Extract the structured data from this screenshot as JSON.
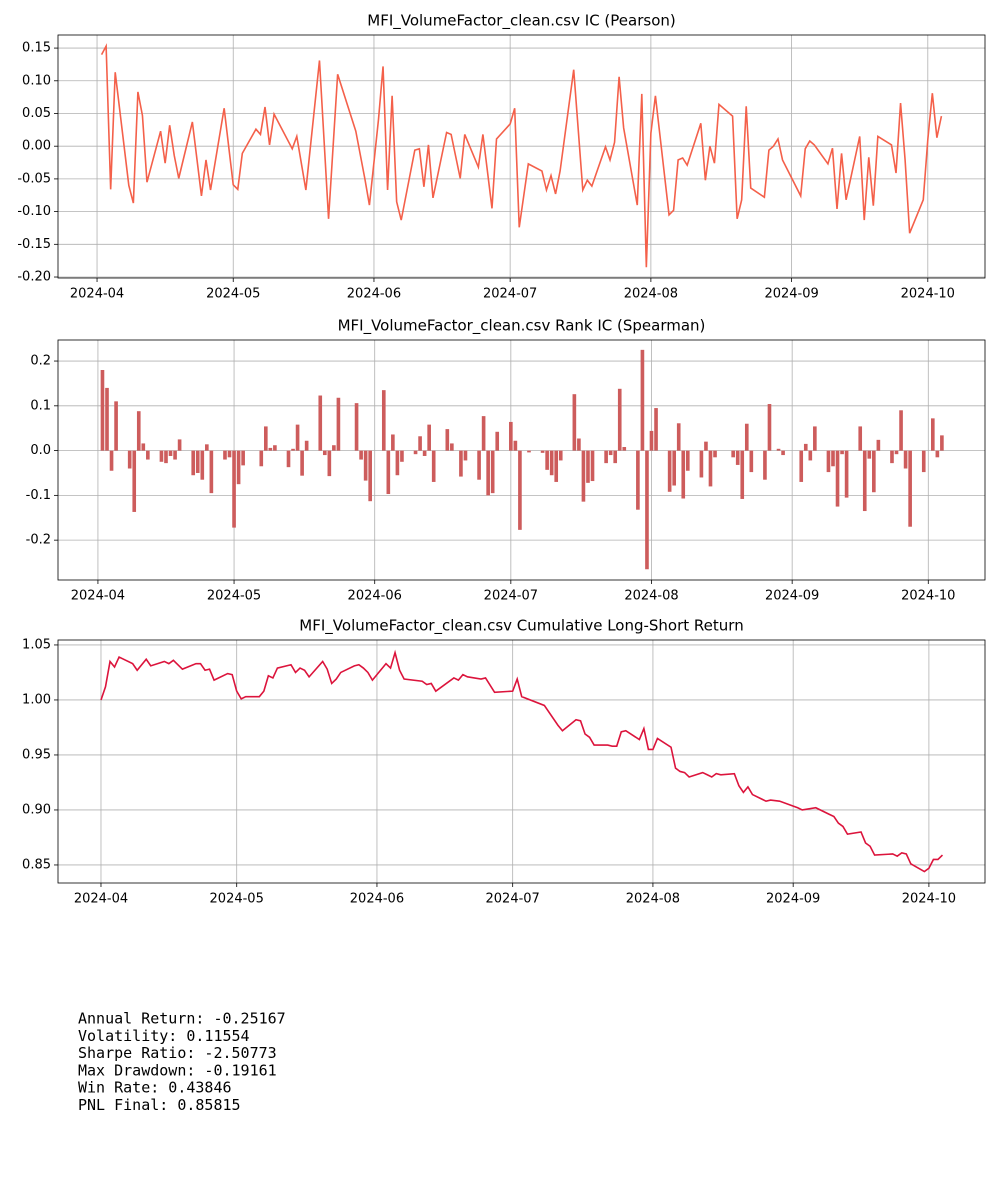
{
  "chart_data": [
    {
      "type": "line",
      "title": "MFI_VolumeFactor_clean.csv IC (Pearson)",
      "color": "#f4604a",
      "grid": true,
      "x": [
        1,
        2,
        3,
        4,
        7,
        8,
        9,
        10,
        11,
        14,
        15,
        16,
        17,
        18,
        21,
        23,
        24,
        25,
        28,
        30,
        31,
        32,
        35,
        36,
        37,
        38,
        39,
        43,
        44,
        46,
        49,
        51,
        53,
        57,
        59,
        60,
        62,
        63,
        64,
        65,
        66,
        67,
        70,
        71,
        72,
        73,
        74,
        77,
        78,
        80,
        81,
        84,
        85,
        87,
        88,
        91,
        92,
        93,
        95,
        98,
        99,
        100,
        101,
        102,
        105,
        107,
        108,
        109,
        112,
        113,
        114,
        115,
        116,
        119,
        120,
        121,
        122,
        123,
        126,
        127,
        128,
        129,
        130,
        133,
        134,
        135,
        136,
        137,
        140,
        141,
        142,
        143,
        144,
        147,
        148,
        149,
        150,
        151,
        155,
        156,
        157,
        158,
        161,
        162,
        163,
        164,
        165,
        168,
        169,
        170,
        171,
        172,
        175,
        176,
        177,
        178,
        179,
        182,
        183,
        184,
        185,
        186
      ],
      "values": [
        0.14,
        0.153,
        -0.066,
        0.113,
        -0.06,
        -0.087,
        0.083,
        0.047,
        -0.055,
        0.023,
        -0.026,
        0.032,
        -0.014,
        -0.049,
        0.037,
        -0.076,
        -0.021,
        -0.067,
        0.058,
        -0.059,
        -0.066,
        -0.011,
        0.026,
        0.018,
        0.06,
        0.002,
        0.049,
        -0.004,
        0.015,
        -0.067,
        0.131,
        -0.111,
        0.11,
        0.023,
        -0.05,
        -0.09,
        0.041,
        0.122,
        -0.067,
        0.077,
        -0.085,
        -0.113,
        -0.006,
        -0.004,
        -0.062,
        0.002,
        -0.079,
        0.021,
        0.018,
        -0.049,
        0.018,
        -0.032,
        0.018,
        -0.095,
        0.011,
        0.034,
        0.058,
        -0.124,
        -0.027,
        -0.038,
        -0.067,
        -0.045,
        -0.073,
        -0.038,
        0.117,
        -0.067,
        -0.052,
        -0.061,
        -0.001,
        -0.021,
        0.006,
        0.106,
        0.028,
        -0.09,
        0.08,
        -0.185,
        0.02,
        0.077,
        -0.105,
        -0.098,
        -0.021,
        -0.018,
        -0.029,
        0.035,
        -0.052,
        0.0,
        -0.026,
        0.064,
        0.046,
        -0.111,
        -0.082,
        0.061,
        -0.064,
        -0.078,
        -0.006,
        0.0,
        0.011,
        -0.021,
        -0.076,
        -0.004,
        0.008,
        0.002,
        -0.027,
        -0.003,
        -0.096,
        -0.011,
        -0.082,
        0.015,
        -0.113,
        -0.017,
        -0.091,
        0.015,
        0.002,
        -0.041,
        0.066,
        -0.021,
        -0.133,
        -0.082,
        0.01,
        0.081,
        0.013,
        0.046
      ],
      "xlim": [
        -8.6,
        195.6
      ],
      "ylim": [
        -0.2015,
        0.17
      ],
      "xticks": [
        {
          "value": 0,
          "label": "2024-04"
        },
        {
          "value": 30,
          "label": "2024-05"
        },
        {
          "value": 61,
          "label": "2024-06"
        },
        {
          "value": 91,
          "label": "2024-07"
        },
        {
          "value": 122,
          "label": "2024-08"
        },
        {
          "value": 153,
          "label": "2024-09"
        },
        {
          "value": 183,
          "label": "2024-10"
        }
      ],
      "yticks": [
        0.15,
        {
          "value": 0.1,
          "label": "0.10"
        },
        0.05,
        {
          "value": 0,
          "label": "0.00"
        },
        -0.05,
        {
          "value": -0.1,
          "label": "-0.10"
        },
        -0.15,
        {
          "value": -0.2,
          "label": "-0.20"
        }
      ]
    },
    {
      "type": "bar",
      "title": "MFI_VolumeFactor_clean.csv Rank IC (Spearman)",
      "color": "#cd5c5c",
      "grid": true,
      "x": [
        1,
        2,
        3,
        4,
        7,
        8,
        9,
        10,
        11,
        14,
        15,
        16,
        17,
        18,
        21,
        22,
        23,
        24,
        25,
        28,
        29,
        30,
        31,
        32,
        36,
        37,
        38,
        39,
        42,
        43,
        44,
        45,
        46,
        49,
        50,
        51,
        52,
        53,
        57,
        58,
        59,
        60,
        63,
        64,
        65,
        66,
        67,
        70,
        71,
        72,
        73,
        74,
        77,
        78,
        80,
        81,
        84,
        85,
        86,
        87,
        88,
        91,
        92,
        93,
        95,
        98,
        99,
        100,
        101,
        102,
        105,
        106,
        107,
        108,
        109,
        112,
        113,
        114,
        115,
        116,
        119,
        120,
        121,
        122,
        123,
        126,
        127,
        128,
        129,
        130,
        133,
        134,
        135,
        136,
        140,
        141,
        142,
        143,
        144,
        147,
        148,
        150,
        151,
        155,
        156,
        157,
        158,
        161,
        162,
        163,
        164,
        165,
        168,
        169,
        170,
        171,
        172,
        175,
        176,
        177,
        178,
        179,
        182,
        184,
        185,
        186
      ],
      "values": [
        0.18,
        0.14,
        -0.045,
        0.11,
        -0.04,
        -0.137,
        0.088,
        0.016,
        -0.02,
        -0.025,
        -0.028,
        -0.012,
        -0.02,
        0.025,
        -0.055,
        -0.05,
        -0.065,
        0.014,
        -0.095,
        -0.02,
        -0.015,
        -0.172,
        -0.075,
        -0.033,
        -0.035,
        0.054,
        0.006,
        0.012,
        -0.037,
        0.004,
        0.058,
        -0.056,
        0.022,
        0.123,
        -0.01,
        -0.057,
        0.012,
        0.118,
        0.106,
        -0.02,
        -0.067,
        -0.113,
        0.135,
        -0.097,
        0.036,
        -0.055,
        -0.025,
        -0.008,
        0.032,
        -0.012,
        0.058,
        -0.07,
        0.048,
        0.016,
        -0.058,
        -0.022,
        -0.065,
        0.077,
        -0.1,
        -0.095,
        0.042,
        0.064,
        0.022,
        -0.177,
        -0.004,
        -0.005,
        -0.043,
        -0.055,
        -0.07,
        -0.022,
        0.126,
        0.027,
        -0.114,
        -0.072,
        -0.068,
        -0.028,
        -0.01,
        -0.028,
        0.138,
        0.008,
        -0.132,
        0.225,
        -0.265,
        0.044,
        0.095,
        -0.092,
        -0.078,
        0.061,
        -0.107,
        -0.045,
        -0.06,
        0.02,
        -0.08,
        -0.015,
        -0.015,
        -0.032,
        -0.108,
        0.06,
        -0.048,
        -0.065,
        0.104,
        0.004,
        -0.01,
        -0.07,
        0.015,
        -0.022,
        0.054,
        -0.048,
        -0.035,
        -0.125,
        -0.008,
        -0.105,
        0.054,
        -0.135,
        -0.018,
        -0.093,
        0.024,
        -0.028,
        -0.008,
        0.09,
        -0.04,
        -0.17,
        -0.048,
        0.072,
        -0.015,
        0.034
      ],
      "xlim": [
        -8.8,
        195.5
      ],
      "ylim": [
        -0.289,
        0.247
      ],
      "xticks": [
        {
          "value": 0,
          "label": "2024-04"
        },
        {
          "value": 30,
          "label": "2024-05"
        },
        {
          "value": 61,
          "label": "2024-06"
        },
        {
          "value": 91,
          "label": "2024-07"
        },
        {
          "value": 122,
          "label": "2024-08"
        },
        {
          "value": 153,
          "label": "2024-09"
        },
        {
          "value": 183,
          "label": "2024-10"
        }
      ],
      "yticks": [
        0.2,
        0.1,
        {
          "value": 0,
          "label": "0.0"
        },
        -0.1,
        -0.2
      ]
    },
    {
      "type": "line",
      "title": "MFI_VolumeFactor_clean.csv Cumulative Long-Short Return",
      "color": "#dc143c",
      "grid": true,
      "x": [
        0,
        1,
        2,
        3,
        4,
        7,
        8,
        10,
        11,
        14,
        15,
        16,
        18,
        21,
        22,
        23,
        24,
        25,
        28,
        29,
        30,
        31,
        32,
        35,
        36,
        37,
        38,
        39,
        42,
        43,
        44,
        45,
        46,
        49,
        50,
        51,
        52,
        53,
        56,
        57,
        58,
        59,
        60,
        63,
        64,
        65,
        66,
        67,
        71,
        72,
        73,
        74,
        78,
        79,
        80,
        81,
        84,
        85,
        87,
        91,
        92,
        93,
        98,
        101,
        102,
        105,
        106,
        107,
        108,
        109,
        112,
        113,
        114,
        115,
        116,
        119,
        120,
        121,
        122,
        123,
        126,
        127,
        128,
        129,
        130,
        133,
        134,
        135,
        136,
        137,
        140,
        141,
        142,
        143,
        144,
        147,
        148,
        150,
        154,
        155,
        158,
        161,
        162,
        163,
        164,
        165,
        168,
        169,
        170,
        171,
        175,
        176,
        177,
        178,
        179,
        182,
        183,
        184,
        185,
        186
      ],
      "values": [
        1.0,
        1.012,
        1.035,
        1.03,
        1.039,
        1.033,
        1.027,
        1.037,
        1.031,
        1.035,
        1.033,
        1.036,
        1.028,
        1.033,
        1.033,
        1.027,
        1.028,
        1.018,
        1.024,
        1.023,
        1.008,
        1.001,
        1.003,
        1.003,
        1.008,
        1.022,
        1.02,
        1.029,
        1.032,
        1.025,
        1.029,
        1.027,
        1.021,
        1.035,
        1.028,
        1.015,
        1.019,
        1.025,
        1.031,
        1.032,
        1.029,
        1.025,
        1.018,
        1.033,
        1.029,
        1.043,
        1.027,
        1.019,
        1.017,
        1.014,
        1.015,
        1.008,
        1.02,
        1.018,
        1.023,
        1.021,
        1.019,
        1.02,
        1.007,
        1.008,
        1.019,
        1.003,
        0.995,
        0.977,
        0.972,
        0.982,
        0.981,
        0.969,
        0.966,
        0.959,
        0.959,
        0.958,
        0.958,
        0.971,
        0.972,
        0.964,
        0.974,
        0.955,
        0.955,
        0.965,
        0.957,
        0.938,
        0.935,
        0.934,
        0.93,
        0.934,
        0.932,
        0.93,
        0.933,
        0.932,
        0.933,
        0.922,
        0.916,
        0.921,
        0.914,
        0.908,
        0.909,
        0.908,
        0.902,
        0.9,
        0.902,
        0.896,
        0.894,
        0.888,
        0.885,
        0.878,
        0.88,
        0.87,
        0.867,
        0.859,
        0.86,
        0.858,
        0.861,
        0.86,
        0.851,
        0.844,
        0.847,
        0.855,
        0.855,
        0.859
      ],
      "xlim": [
        -9.5,
        195.4
      ],
      "ylim": [
        0.8336,
        1.0545
      ],
      "xticks": [
        {
          "value": 0,
          "label": "2024-04"
        },
        {
          "value": 30,
          "label": "2024-05"
        },
        {
          "value": 61,
          "label": "2024-06"
        },
        {
          "value": 91,
          "label": "2024-07"
        },
        {
          "value": 122,
          "label": "2024-08"
        },
        {
          "value": 153,
          "label": "2024-09"
        },
        {
          "value": 183,
          "label": "2024-10"
        }
      ],
      "yticks": [
        1.05,
        {
          "value": 1.0,
          "label": "1.00"
        },
        0.95,
        {
          "value": 0.9,
          "label": "0.90"
        },
        0.85
      ]
    }
  ],
  "stats": [
    "Annual Return: -0.25167",
    "Volatility: 0.11554",
    "Sharpe Ratio: -2.50773",
    "Max Drawdown: -0.19161",
    "Win Rate: 0.43846",
    "PNL Final: 0.85815"
  ]
}
